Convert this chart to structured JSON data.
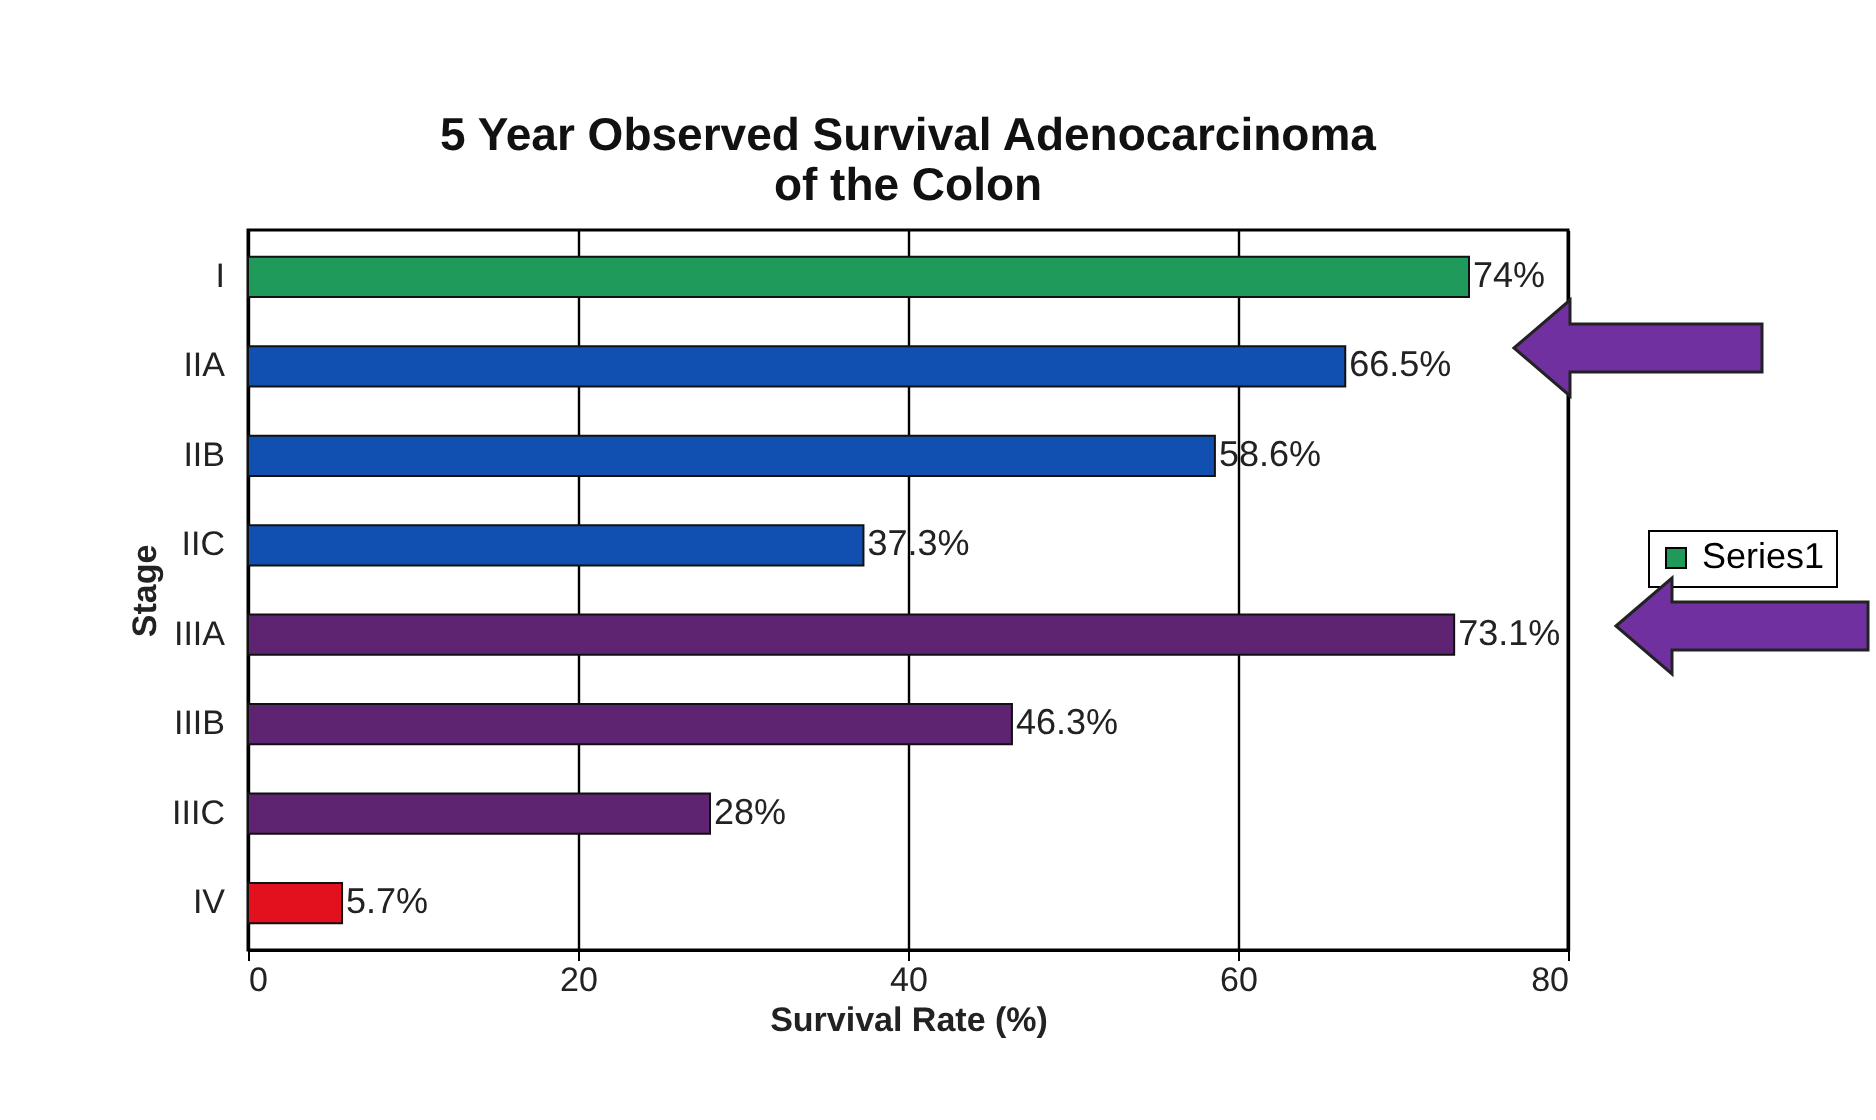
{
  "chart_data": {
    "type": "bar",
    "orientation": "horizontal",
    "title": "5 Year Observed Survival Adenocarcinoma of the Colon",
    "xlabel": "Survival Rate (%)",
    "ylabel": "Stage",
    "categories": [
      "I",
      "IIA",
      "IIB",
      "IIC",
      "IIIA",
      "IIIB",
      "IIIC",
      "IV"
    ],
    "series": [
      {
        "name": "Series1",
        "values": [
          74,
          66.5,
          58.6,
          37.3,
          73.1,
          46.3,
          28,
          5.7
        ],
        "colors": [
          "#1f9a5b",
          "#1150b0",
          "#1150b0",
          "#1150b0",
          "#5e2371",
          "#5e2371",
          "#5e2371",
          "#e3101e"
        ],
        "value_labels": [
          "74%",
          "66.5%",
          "58.6%",
          "37.3%",
          "73.1%",
          "46.3%",
          "28%",
          "5.7%"
        ]
      }
    ],
    "xlim": [
      0,
      80
    ],
    "xticks": [
      0,
      20,
      40,
      60,
      80
    ],
    "grid": "x",
    "legend": "right"
  }
}
